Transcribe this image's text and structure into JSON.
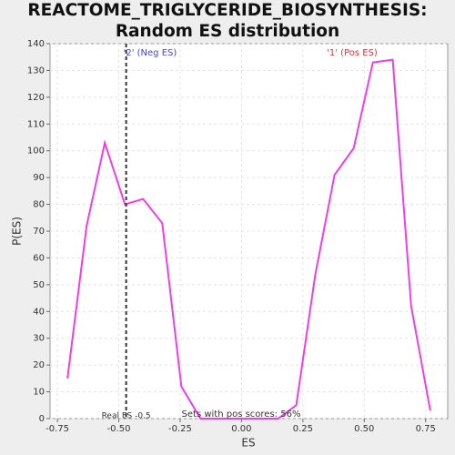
{
  "chart_data": {
    "type": "line",
    "title": "REACTOME_TRIGLYCERIDE_BIOSYNTHESIS: Random ES distribution",
    "xlabel": "ES",
    "ylabel": "P(ES)",
    "x": [
      -0.709,
      -0.631,
      -0.557,
      -0.475,
      -0.401,
      -0.323,
      -0.245,
      -0.167,
      -0.089,
      -0.011,
      0.069,
      0.149,
      0.223,
      0.301,
      0.379,
      0.457,
      0.535,
      0.616,
      0.691,
      0.769
    ],
    "series": [
      {
        "name": "P(ES)",
        "color": "#ee3ee8",
        "values": [
          15,
          72,
          103,
          80,
          82,
          73,
          12,
          0,
          0,
          0,
          0,
          0,
          5,
          54,
          91,
          101,
          133,
          134,
          42,
          3
        ]
      }
    ],
    "xlim": [
      -0.78,
      0.84
    ],
    "ylim": [
      0,
      140
    ],
    "xticks": [
      -0.75,
      {
        "value": -0.5,
        "label": "-0.50"
      },
      -0.25,
      {
        "value": 0,
        "label": "0.00"
      },
      0.25,
      {
        "value": 0.5,
        "label": "0.50"
      },
      0.75
    ],
    "yticks": [
      0,
      10,
      20,
      30,
      40,
      50,
      60,
      70,
      80,
      90,
      100,
      110,
      120,
      130,
      140
    ],
    "grid": true,
    "real_es": -0.47,
    "real_es_label": "Real ES -0.5",
    "neg_label": "'2' (Neg ES)",
    "pos_label": "'1' (Pos ES)",
    "pos_scores_label": "Sets with pos scores: 56%"
  }
}
